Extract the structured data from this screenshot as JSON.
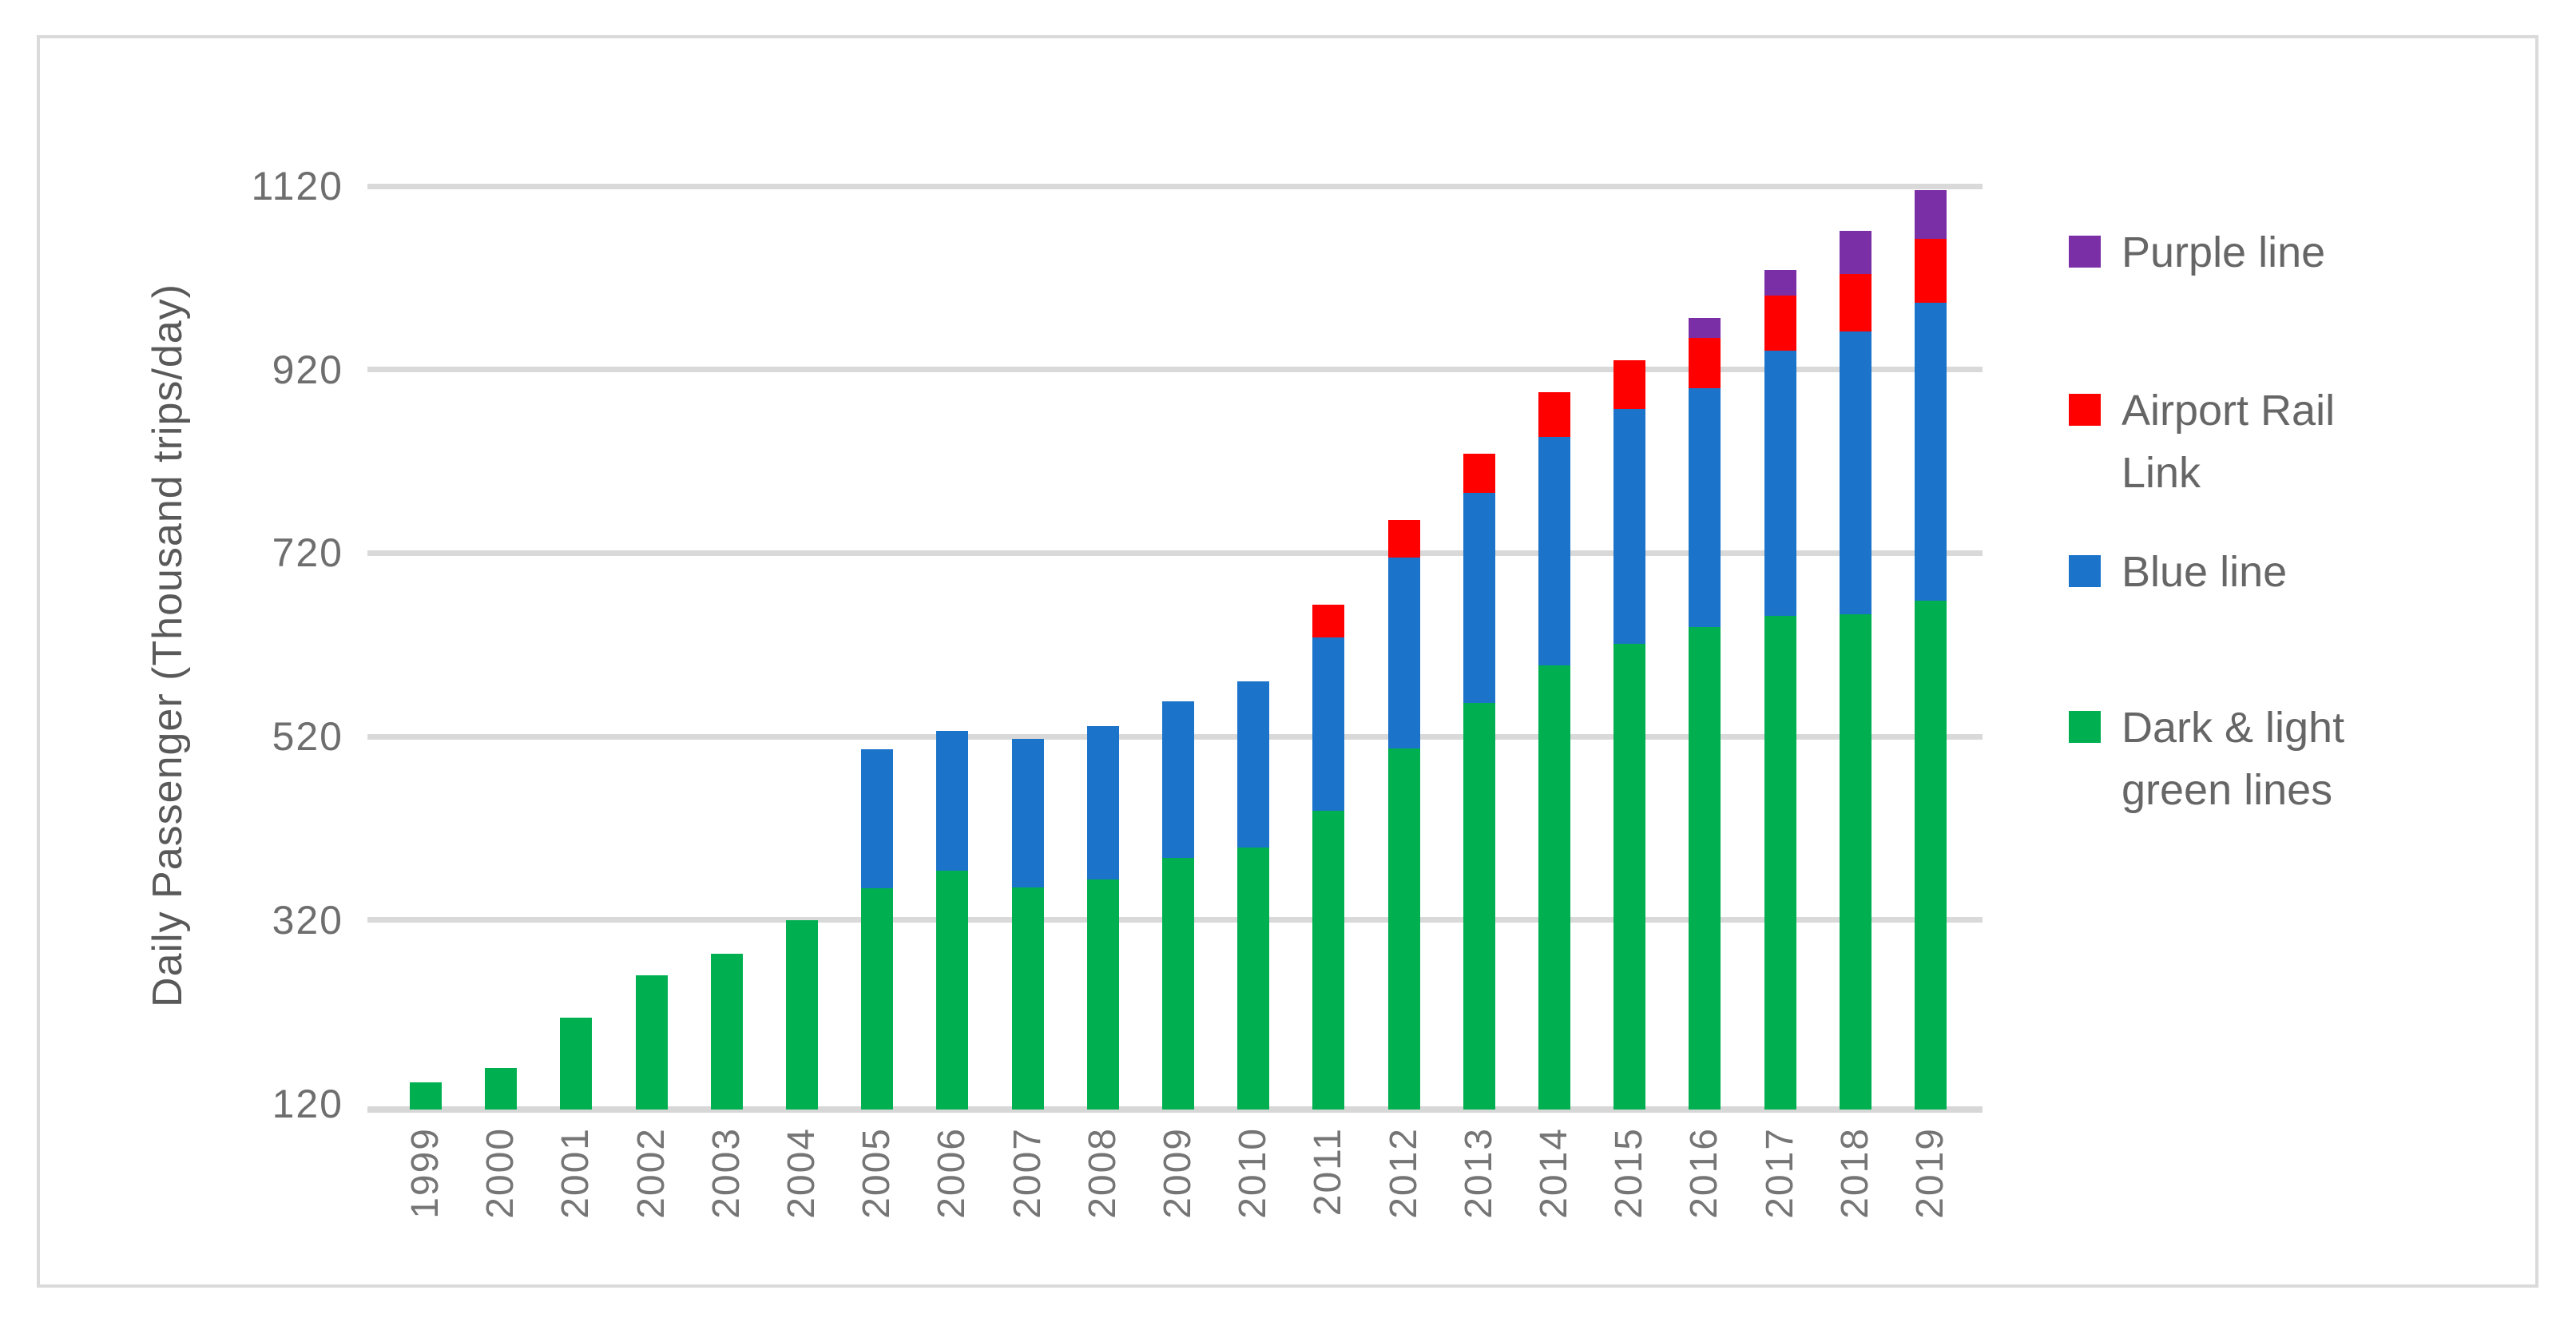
{
  "chart_data": {
    "type": "bar",
    "stacked": true,
    "title": "",
    "xlabel": "",
    "ylabel": "Daily Passenger (Thousand trips/day)",
    "categories": [
      "1999",
      "2000",
      "2001",
      "2002",
      "2003",
      "2004",
      "2005",
      "2006",
      "2007",
      "2008",
      "2009",
      "2010",
      "2011",
      "2012",
      "2013",
      "2014",
      "2015",
      "2016",
      "2017",
      "2018",
      "2019"
    ],
    "series": [
      {
        "name": "Dark & light green lines",
        "color": "#00B050",
        "values": [
          150,
          165,
          220,
          266,
          290,
          326,
          361,
          380,
          362,
          371,
          394,
          406,
          446,
          514,
          563,
          604,
          628,
          646,
          658,
          660,
          675
        ]
      },
      {
        "name": "Blue line",
        "color": "#1B74C9",
        "values": [
          0,
          0,
          0,
          0,
          0,
          0,
          152,
          153,
          162,
          167,
          171,
          181,
          189,
          208,
          229,
          249,
          256,
          260,
          289,
          308,
          324
        ]
      },
      {
        "name": "Airport Rail Link",
        "color": "#FF0000",
        "values": [
          0,
          0,
          0,
          0,
          0,
          0,
          0,
          0,
          0,
          0,
          0,
          0,
          35,
          41,
          43,
          49,
          53,
          55,
          60,
          63,
          70
        ]
      },
      {
        "name": "Purple line",
        "color": "#7B2FA6",
        "values": [
          0,
          0,
          0,
          0,
          0,
          0,
          0,
          0,
          0,
          0,
          0,
          0,
          0,
          0,
          0,
          0,
          0,
          22,
          28,
          47,
          53
        ]
      }
    ],
    "legend": {
      "position": "right",
      "order_top_to_bottom": [
        "Purple line",
        "Airport Rail Link",
        "Blue line",
        "Dark & light green lines"
      ]
    },
    "y_axis": {
      "min": 120,
      "max": 1120,
      "tick_interval": 200,
      "ticks": [
        1120,
        920,
        720,
        520,
        320,
        120
      ]
    },
    "x_axis": {
      "label_rotation_degrees": 90
    },
    "grid": true
  },
  "colors": {
    "gridline": "#D9D9D9",
    "axis_line": "#D7D7D7",
    "tick_text": "#6E6E6E",
    "legend_text": "#666666",
    "axis_title_text": "#595959",
    "figure_border": "#DADADA",
    "background": "#FFFFFF"
  }
}
